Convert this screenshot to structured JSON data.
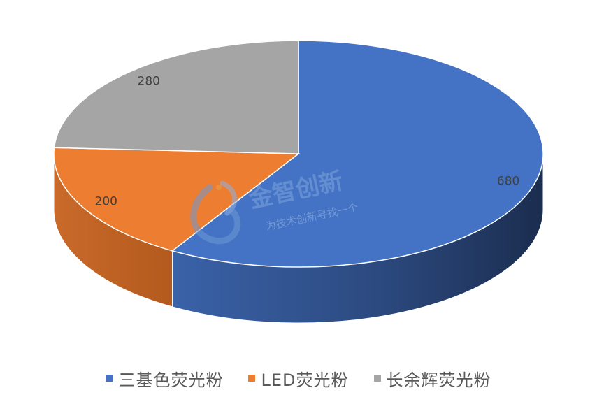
{
  "chart_data": {
    "type": "pie",
    "style": "3d",
    "categories": [
      "三基色荧光粉",
      "LED荧光粉",
      "长余辉荧光粉"
    ],
    "values": [
      680,
      200,
      280
    ],
    "colors": [
      "#4472C4",
      "#ED7D31",
      "#A5A5A5"
    ],
    "data_labels": [
      "680",
      "200",
      "280"
    ],
    "legend_position": "bottom"
  },
  "watermark": {
    "title": "金智创新",
    "subtitle": "为技术创新寻找一个"
  }
}
